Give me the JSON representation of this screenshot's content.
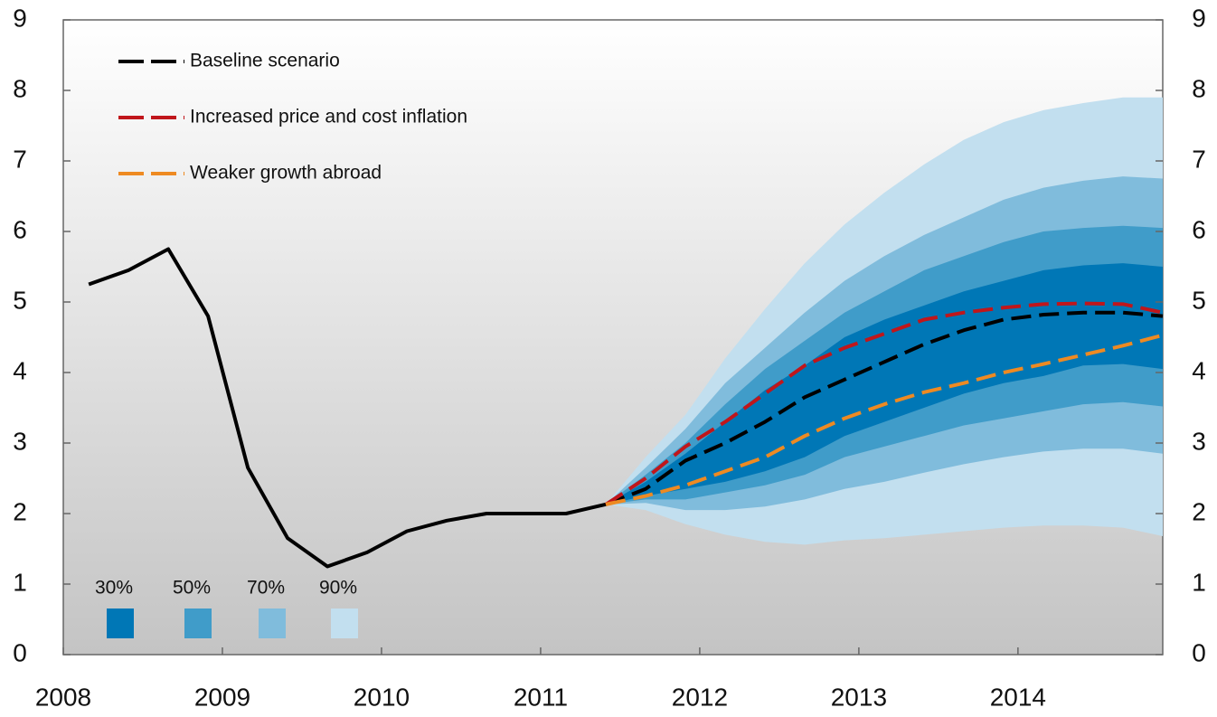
{
  "chart_data": {
    "type": "fan",
    "x": [
      2008.16,
      2008.41,
      2008.66,
      2008.91,
      2009.16,
      2009.41,
      2009.66,
      2009.91,
      2010.16,
      2010.41,
      2010.66,
      2010.91,
      2011.16,
      2011.41,
      2011.66,
      2011.91,
      2012.16,
      2012.41,
      2012.66,
      2012.91,
      2013.16,
      2013.41,
      2013.66,
      2013.91,
      2014.16,
      2014.41,
      2014.66,
      2014.91
    ],
    "xlim": [
      2008,
      2014.91
    ],
    "xticks": [
      2008,
      2009,
      2010,
      2011,
      2012,
      2013,
      2014
    ],
    "ylim": [
      0,
      9
    ],
    "yticks": [
      0,
      1,
      2,
      3,
      4,
      5,
      6,
      7,
      8,
      9
    ],
    "y2lim": [
      0,
      9
    ],
    "y2ticks": [
      0,
      1,
      2,
      3,
      4,
      5,
      6,
      7,
      8,
      9
    ],
    "bands": [
      {
        "name": "90%",
        "color": "#c2dfef",
        "lower": [
          null,
          null,
          null,
          null,
          null,
          null,
          null,
          null,
          null,
          null,
          null,
          null,
          null,
          2.13,
          2.05,
          1.85,
          1.7,
          1.6,
          1.56,
          1.62,
          1.65,
          1.7,
          1.75,
          1.8,
          1.83,
          1.83,
          1.8,
          1.68
        ],
        "upper": [
          null,
          null,
          null,
          null,
          null,
          null,
          null,
          null,
          null,
          null,
          null,
          null,
          null,
          2.13,
          2.8,
          3.4,
          4.2,
          4.9,
          5.55,
          6.1,
          6.55,
          6.95,
          7.3,
          7.55,
          7.72,
          7.82,
          7.9,
          7.9
        ]
      },
      {
        "name": "70%",
        "color": "#80bcdc",
        "lower": [
          null,
          null,
          null,
          null,
          null,
          null,
          null,
          null,
          null,
          null,
          null,
          null,
          null,
          2.13,
          2.15,
          2.05,
          2.05,
          2.1,
          2.2,
          2.35,
          2.45,
          2.58,
          2.7,
          2.8,
          2.88,
          2.92,
          2.92,
          2.85
        ],
        "upper": [
          null,
          null,
          null,
          null,
          null,
          null,
          null,
          null,
          null,
          null,
          null,
          null,
          null,
          2.13,
          2.65,
          3.2,
          3.85,
          4.35,
          4.85,
          5.3,
          5.65,
          5.95,
          6.2,
          6.45,
          6.62,
          6.72,
          6.78,
          6.75
        ]
      },
      {
        "name": "50%",
        "color": "#409cc9",
        "lower": [
          null,
          null,
          null,
          null,
          null,
          null,
          null,
          null,
          null,
          null,
          null,
          null,
          null,
          2.13,
          2.2,
          2.2,
          2.3,
          2.4,
          2.55,
          2.8,
          2.95,
          3.1,
          3.25,
          3.35,
          3.45,
          3.55,
          3.58,
          3.52
        ],
        "upper": [
          null,
          null,
          null,
          null,
          null,
          null,
          null,
          null,
          null,
          null,
          null,
          null,
          null,
          2.13,
          2.55,
          3.0,
          3.55,
          4.05,
          4.45,
          4.85,
          5.15,
          5.45,
          5.65,
          5.85,
          6.0,
          6.05,
          6.08,
          6.05
        ]
      },
      {
        "name": "30%",
        "color": "#0077b6",
        "lower": [
          null,
          null,
          null,
          null,
          null,
          null,
          null,
          null,
          null,
          null,
          null,
          null,
          null,
          2.13,
          2.25,
          2.35,
          2.45,
          2.6,
          2.8,
          3.1,
          3.3,
          3.5,
          3.7,
          3.85,
          3.95,
          4.1,
          4.12,
          4.05
        ],
        "upper": [
          null,
          null,
          null,
          null,
          null,
          null,
          null,
          null,
          null,
          null,
          null,
          null,
          null,
          2.13,
          2.45,
          2.85,
          3.3,
          3.75,
          4.1,
          4.5,
          4.75,
          4.95,
          5.15,
          5.3,
          5.45,
          5.52,
          5.55,
          5.5
        ]
      }
    ],
    "series": [
      {
        "name": "Baseline scenario",
        "color": "#000000",
        "values": [
          5.25,
          5.45,
          5.75,
          4.8,
          2.65,
          1.65,
          1.25,
          1.45,
          1.75,
          1.9,
          2.0,
          2.0,
          2.0,
          2.13,
          null,
          null,
          null,
          null,
          null,
          null,
          null,
          null,
          null,
          null,
          null,
          null,
          null,
          null
        ]
      },
      {
        "name": "Baseline scenario",
        "color": "#000000",
        "dashed": true,
        "legend": true,
        "values": [
          null,
          null,
          null,
          null,
          null,
          null,
          null,
          null,
          null,
          null,
          null,
          null,
          null,
          2.13,
          2.35,
          2.75,
          3.0,
          3.3,
          3.65,
          3.9,
          4.15,
          4.4,
          4.6,
          4.75,
          4.82,
          4.85,
          4.85,
          4.8
        ]
      },
      {
        "name": "Increased price and cost inflation",
        "color": "#c0161b",
        "dashed": true,
        "legend": true,
        "values": [
          null,
          null,
          null,
          null,
          null,
          null,
          null,
          null,
          null,
          null,
          null,
          null,
          null,
          2.13,
          2.5,
          2.95,
          3.3,
          3.7,
          4.1,
          4.35,
          4.55,
          4.75,
          4.85,
          4.92,
          4.97,
          4.98,
          4.97,
          4.85
        ]
      },
      {
        "name": "Weaker growth abroad",
        "color": "#ee8a22",
        "dashed": true,
        "legend": true,
        "values": [
          null,
          null,
          null,
          null,
          null,
          null,
          null,
          null,
          null,
          null,
          null,
          null,
          null,
          2.13,
          2.25,
          2.4,
          2.6,
          2.8,
          3.1,
          3.35,
          3.55,
          3.72,
          3.85,
          4.0,
          4.12,
          4.25,
          4.38,
          4.53
        ]
      }
    ]
  }
}
